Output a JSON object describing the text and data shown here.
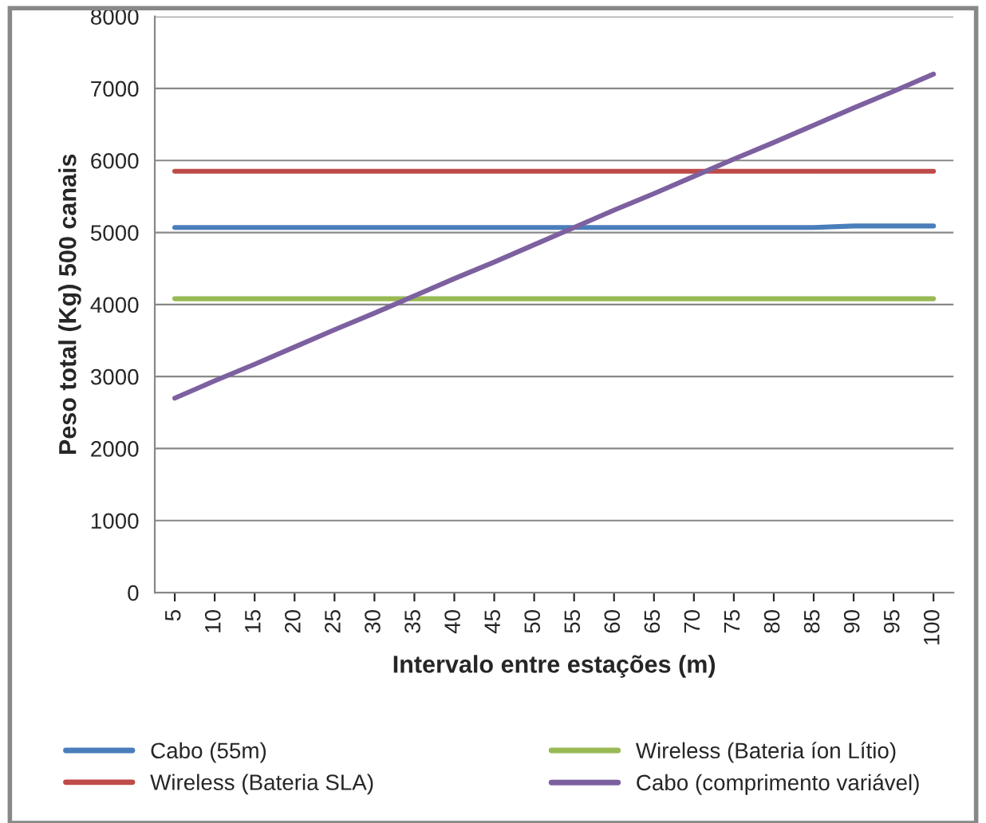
{
  "chart_data": {
    "type": "line",
    "xlabel": "Intervalo entre estações (m)",
    "ylabel": "Peso total (Kg) 500 canais",
    "categories": [
      "5",
      "10",
      "15",
      "20",
      "25",
      "30",
      "35",
      "40",
      "45",
      "50",
      "55",
      "60",
      "65",
      "70",
      "75",
      "80",
      "85",
      "90",
      "95",
      "100"
    ],
    "series": [
      {
        "name": "Cabo (55m)",
        "color": "#4a7ebb",
        "values": [
          5070,
          5070,
          5070,
          5070,
          5070,
          5070,
          5070,
          5070,
          5070,
          5070,
          5070,
          5070,
          5070,
          5070,
          5070,
          5070,
          5070,
          5090,
          5090,
          5090
        ]
      },
      {
        "name": "Wireless (Bateria SLA)",
        "color": "#be4b48",
        "values": [
          5850,
          5850,
          5850,
          5850,
          5850,
          5850,
          5850,
          5850,
          5850,
          5850,
          5850,
          5850,
          5850,
          5850,
          5850,
          5850,
          5850,
          5850,
          5850,
          5850
        ]
      },
      {
        "name": "Wireless (Bateria íon Lítio)",
        "color": "#98b954",
        "values": [
          4080,
          4080,
          4080,
          4080,
          4080,
          4080,
          4080,
          4080,
          4080,
          4080,
          4080,
          4080,
          4080,
          4080,
          4080,
          4080,
          4080,
          4080,
          4080,
          4080
        ]
      },
      {
        "name": "Cabo (comprimento variável)",
        "color": "#7d60a0",
        "values": [
          2700,
          2940,
          3170,
          3410,
          3650,
          3880,
          4120,
          4360,
          4590,
          4830,
          5070,
          5310,
          5540,
          5780,
          6020,
          6250,
          6490,
          6730,
          6960,
          7200
        ]
      }
    ],
    "ylim": [
      0,
      8000
    ],
    "yticks": [
      0,
      1000,
      2000,
      3000,
      4000,
      5000,
      6000,
      7000,
      8000
    ],
    "grid": "y",
    "legend": "bottom",
    "marker": "none",
    "line_style": "solid"
  }
}
